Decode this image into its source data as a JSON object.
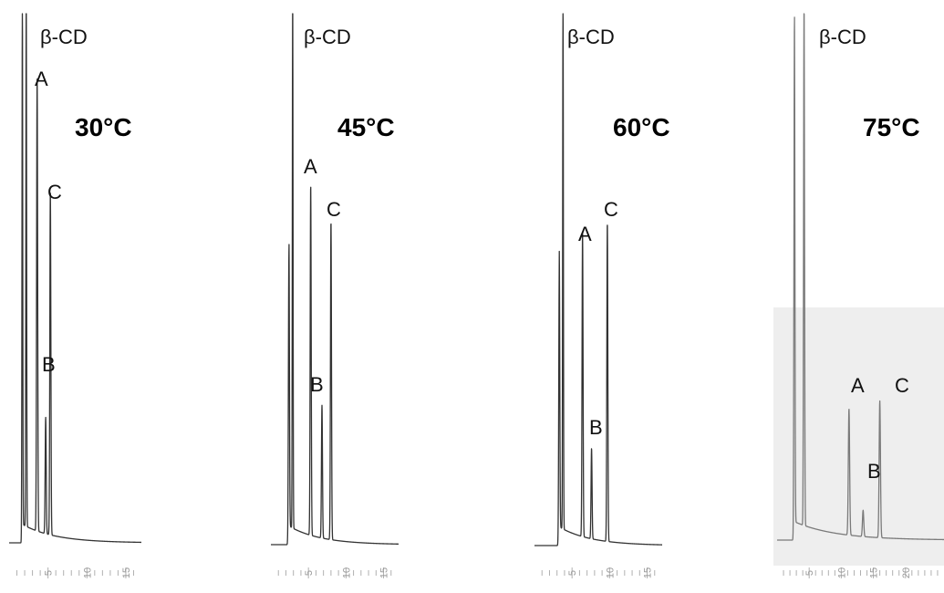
{
  "chart_data": [
    {
      "type": "line",
      "title": "30°C",
      "xlabel": "",
      "ylabel": "",
      "xlim": [
        0,
        17
      ],
      "ylim": [
        0,
        100
      ],
      "x_ticks": [
        5,
        10,
        15
      ],
      "trace_color": "#333333",
      "peaks": [
        {
          "label": "β-CD",
          "x": 2.2,
          "height": 100
        },
        {
          "label": "A",
          "x": 3.6,
          "height": 86
        },
        {
          "label": "B",
          "x": 4.7,
          "height": 22
        },
        {
          "label": "C",
          "x": 5.3,
          "height": 65
        }
      ],
      "extra_peaks": [
        {
          "x": 1.7,
          "height": 100
        }
      ]
    },
    {
      "type": "line",
      "title": "45°C",
      "xlabel": "",
      "ylabel": "",
      "xlim": [
        0,
        17
      ],
      "ylim": [
        0,
        100
      ],
      "x_ticks": [
        5,
        10,
        15
      ],
      "trace_color": "#333333",
      "peaks": [
        {
          "label": "β-CD",
          "x": 2.9,
          "height": 100
        },
        {
          "label": "A",
          "x": 5.3,
          "height": 66
        },
        {
          "label": "B",
          "x": 6.8,
          "height": 25
        },
        {
          "label": "C",
          "x": 8.0,
          "height": 60
        }
      ],
      "extra_peaks": [
        {
          "x": 2.4,
          "height": 55
        }
      ]
    },
    {
      "type": "line",
      "title": "60°C",
      "xlabel": "",
      "ylabel": "",
      "xlim": [
        0,
        17
      ],
      "ylim": [
        0,
        100
      ],
      "x_ticks": [
        5,
        10,
        15
      ],
      "trace_color": "#333333",
      "peaks": [
        {
          "label": "β-CD",
          "x": 3.8,
          "height": 100
        },
        {
          "label": "A",
          "x": 6.4,
          "height": 57
        },
        {
          "label": "B",
          "x": 7.6,
          "height": 17
        },
        {
          "label": "C",
          "x": 9.7,
          "height": 60
        }
      ],
      "extra_peaks": [
        {
          "x": 3.3,
          "height": 52
        }
      ]
    },
    {
      "type": "line",
      "title": "75°C",
      "xlabel": "",
      "ylabel": "",
      "xlim": [
        0,
        26
      ],
      "ylim": [
        0,
        100
      ],
      "x_ticks": [
        5,
        10,
        15,
        20
      ],
      "trace_color": "#7a7a7a",
      "peaks": [
        {
          "label": "β-CD",
          "x": 4.2,
          "height": 100
        },
        {
          "label": "A",
          "x": 11.2,
          "height": 24
        },
        {
          "label": "B",
          "x": 13.4,
          "height": 5
        },
        {
          "label": "C",
          "x": 16.0,
          "height": 26
        }
      ],
      "extra_peaks": [
        {
          "x": 2.7,
          "height": 98
        }
      ]
    }
  ]
}
